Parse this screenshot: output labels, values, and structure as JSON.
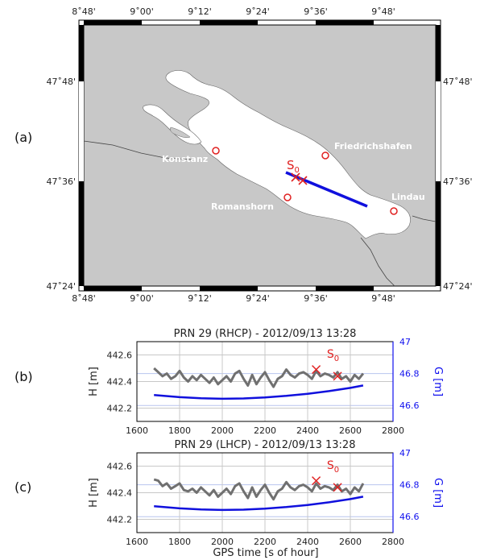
{
  "figure": {
    "panel_labels": [
      "(a)",
      "(b)",
      "(c)"
    ]
  },
  "map": {
    "lon_ticks": [
      "8˚48'",
      "9˚00'",
      "9˚12'",
      "9˚24'",
      "9˚36'",
      "9˚48'"
    ],
    "lat_ticks": [
      "47˚48'",
      "47˚36'",
      "47˚24'"
    ],
    "cities": [
      {
        "name": "Konstanz"
      },
      {
        "name": "Friedrichshafen"
      },
      {
        "name": "Romanshorn"
      },
      {
        "name": "Lindau"
      }
    ],
    "marker_label": "S",
    "marker_sub": "0",
    "colors": {
      "land": "#c8c8c8",
      "lake": "#ffffff",
      "track": "#1010dd",
      "marker": "#e02020"
    }
  },
  "chart_data": [
    {
      "type": "line",
      "title": "PRN 29 (RHCP) - 2012/09/13 13:28",
      "xlabel": "GPS time [s of hour]",
      "ylabel_left": "H [m]",
      "ylabel_right": "G [m]",
      "xlim": [
        1600,
        2800
      ],
      "ylim_left": [
        442.1,
        442.7
      ],
      "ylim_right": [
        46.5,
        47.0
      ],
      "x_ticks": [
        "1600",
        "1800",
        "2000",
        "2200",
        "2400",
        "2600",
        "2800"
      ],
      "y_ticks_left": [
        "442.2",
        "442.4",
        "442.6"
      ],
      "y_ticks_right": [
        "46.6",
        "46.8",
        "47"
      ],
      "marker_label": "S",
      "marker_sub": "0",
      "series": [
        {
          "color": "#707070",
          "axis": "left",
          "x": [
            1680,
            1700,
            1720,
            1740,
            1760,
            1780,
            1800,
            1820,
            1840,
            1860,
            1880,
            1900,
            1920,
            1940,
            1960,
            1980,
            2000,
            2020,
            2040,
            2060,
            2080,
            2100,
            2120,
            2140,
            2160,
            2180,
            2200,
            2220,
            2240,
            2260,
            2280,
            2300,
            2320,
            2340,
            2360,
            2380,
            2400,
            2420,
            2440,
            2460,
            2480,
            2500,
            2520,
            2540,
            2560,
            2580,
            2600,
            2620,
            2640,
            2660
          ],
          "values": [
            442.5,
            442.47,
            442.44,
            442.46,
            442.42,
            442.44,
            442.48,
            442.43,
            442.4,
            442.44,
            442.41,
            442.45,
            442.42,
            442.39,
            442.43,
            442.38,
            442.41,
            442.44,
            442.4,
            442.46,
            442.48,
            442.42,
            442.37,
            442.45,
            442.38,
            442.43,
            442.47,
            442.41,
            442.36,
            442.42,
            442.44,
            442.49,
            442.45,
            442.43,
            442.46,
            442.47,
            442.45,
            442.42,
            442.48,
            442.44,
            442.46,
            442.45,
            442.43,
            442.47,
            442.42,
            442.44,
            442.4,
            442.45,
            442.42,
            442.46
          ]
        },
        {
          "color": "#1010dd",
          "axis": "right",
          "x": [
            1680,
            1800,
            1900,
            2000,
            2100,
            2200,
            2300,
            2400,
            2500,
            2600,
            2660
          ],
          "values": [
            46.665,
            46.652,
            46.645,
            46.642,
            46.644,
            46.65,
            46.66,
            46.673,
            46.69,
            46.71,
            46.725
          ]
        }
      ],
      "markers": [
        {
          "x": 2440,
          "y": 442.49
        },
        {
          "x": 2540,
          "y": 442.44
        }
      ]
    },
    {
      "type": "line",
      "title": "PRN 29 (LHCP) - 2012/09/13 13:28",
      "xlabel": "GPS time [s of hour]",
      "ylabel_left": "H [m]",
      "ylabel_right": "G [m]",
      "xlim": [
        1600,
        2800
      ],
      "ylim_left": [
        442.1,
        442.7
      ],
      "ylim_right": [
        46.5,
        47.0
      ],
      "x_ticks": [
        "1600",
        "1800",
        "2000",
        "2200",
        "2400",
        "2600",
        "2800"
      ],
      "y_ticks_left": [
        "442.2",
        "442.4",
        "442.6"
      ],
      "y_ticks_right": [
        "46.6",
        "46.8",
        "47"
      ],
      "marker_label": "S",
      "marker_sub": "0",
      "series": [
        {
          "color": "#707070",
          "axis": "left",
          "x": [
            1680,
            1700,
            1720,
            1740,
            1760,
            1780,
            1800,
            1820,
            1840,
            1860,
            1880,
            1900,
            1920,
            1940,
            1960,
            1980,
            2000,
            2020,
            2040,
            2060,
            2080,
            2100,
            2120,
            2140,
            2160,
            2180,
            2200,
            2220,
            2240,
            2260,
            2280,
            2300,
            2320,
            2340,
            2360,
            2380,
            2400,
            2420,
            2440,
            2460,
            2480,
            2500,
            2520,
            2540,
            2560,
            2580,
            2600,
            2620,
            2640,
            2660
          ],
          "values": [
            442.5,
            442.49,
            442.45,
            442.47,
            442.43,
            442.45,
            442.47,
            442.42,
            442.41,
            442.43,
            442.4,
            442.44,
            442.41,
            442.38,
            442.42,
            442.37,
            442.4,
            442.43,
            442.39,
            442.45,
            442.47,
            442.41,
            442.36,
            442.44,
            442.37,
            442.42,
            442.46,
            442.4,
            442.35,
            442.41,
            442.43,
            442.48,
            442.44,
            442.42,
            442.45,
            442.46,
            442.44,
            442.41,
            442.47,
            442.43,
            442.45,
            442.44,
            442.42,
            442.46,
            442.41,
            442.43,
            442.39,
            442.44,
            442.41,
            442.47
          ]
        },
        {
          "color": "#1010dd",
          "axis": "right",
          "x": [
            1680,
            1800,
            1900,
            2000,
            2100,
            2200,
            2300,
            2400,
            2500,
            2600,
            2660
          ],
          "values": [
            46.665,
            46.652,
            46.645,
            46.642,
            46.644,
            46.65,
            46.66,
            46.673,
            46.69,
            46.71,
            46.725
          ]
        }
      ],
      "markers": [
        {
          "x": 2440,
          "y": 442.49
        },
        {
          "x": 2540,
          "y": 442.44
        }
      ]
    }
  ]
}
